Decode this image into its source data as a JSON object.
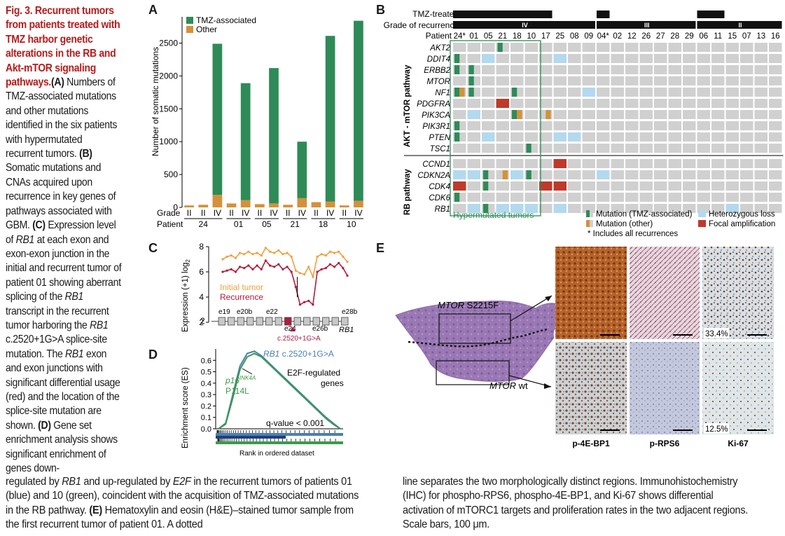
{
  "figure": {
    "legend_left": {
      "title": "Fig. 3. Recurrent tumors from patients treated with TMZ harbor genetic alterations in the RB and Akt-mTOR signaling pathways.",
      "a_label": "(A)",
      "a_text": " Numbers of TMZ-associated mutations and other mutations identified in the six patients with hypermutated recurrent tumors. ",
      "b_label": "(B)",
      "b_text": " Somatic mutations and CNAs acquired upon recurrence in key genes of pathways associated with GBM. ",
      "c_label": "(C)",
      "c_text_1": " Expression level of ",
      "c_gene_1": "RB1",
      "c_text_2": " at each exon and exon-exon junction in the initial and recurrent tumor of patient 01 showing aberrant splicing of the ",
      "c_gene_2": "RB1",
      "c_text_3": " transcript in the recurrent tumor harboring the ",
      "c_gene_3": "RB1",
      "c_text_4": " c.2520+1G>A splice-site mutation. The ",
      "c_gene_4": "RB1",
      "c_text_5": " exon and exon junctions with significant differential usage (red) and the location of the splice-site mutation are shown. ",
      "d_label": "(D)",
      "d_text": " Gene set enrichment analysis shows significant enrichment of genes down-"
    },
    "legend_bottom_left": {
      "t1": "regulated by ",
      "g1": "RB1",
      "t2": " and up-regulated by ",
      "g2": "E2F",
      "t3": " in the recurrent tumors of patients 01 (blue) and 10 (green), coincident with the acquisition of TMZ-associated mutations in the RB pathway. ",
      "e_label": "(E)",
      "t4": " Hematoxylin and eosin (H&E)–stained tumor sample from the first recurrent tumor of patient 01. A dotted"
    },
    "legend_bottom_right": {
      "text": "line separates the two morphologically distinct regions. Immunohistochemistry (IHC) for phospho-RPS6, phospho-4E-BP1, and Ki-67 shows differential activation of mTORC1 targets and proliferation rates in the two adjacent regions. Scale bars, 100 μm."
    }
  },
  "panels": {
    "A": "A",
    "B": "B",
    "C": "C",
    "D": "D",
    "E": "E"
  },
  "colors": {
    "tmz": "#2e8b57",
    "other": "#d4913a",
    "het_loss": "#b3d9ee",
    "focal_amp": "#c0392b",
    "grey_cell": "#d0d0d0",
    "initial": "#f0a040",
    "recurrence": "#b01c3c",
    "blue_line": "#4a7fb5",
    "green_line": "#3b9a4a",
    "legend_title": "#b71c1c"
  },
  "chart_a": {
    "legend": [
      "TMZ-associated",
      "Other"
    ],
    "ylabel": "Number of somatic mutations",
    "row_grade": "Grade",
    "row_patient": "Patient",
    "yticks": [
      0,
      500,
      1000,
      1500,
      2000,
      2500
    ],
    "ylim": [
      0,
      2900
    ]
  },
  "chart_data": [
    {
      "type": "bar",
      "panel": "A",
      "title": "",
      "ylabel": "Number of somatic mutations",
      "ylim": [
        0,
        2900
      ],
      "categories": [
        "24 II",
        "24 II",
        "24 IV",
        "01 II",
        "01 IV",
        "05 II",
        "05 IV",
        "21 II",
        "21 IV",
        "18 II",
        "18 IV",
        "10 II",
        "10 IV"
      ],
      "grades": [
        "II",
        "II",
        "IV",
        "II",
        "IV",
        "II",
        "IV",
        "II",
        "IV",
        "II",
        "IV",
        "II",
        "IV"
      ],
      "patients": [
        {
          "label": "24",
          "count": 3
        },
        {
          "label": "01",
          "count": 2
        },
        {
          "label": "05",
          "count": 2
        },
        {
          "label": "21",
          "count": 2
        },
        {
          "label": "18",
          "count": 2
        },
        {
          "label": "10",
          "count": 2
        }
      ],
      "series": [
        {
          "name": "TMZ-associated",
          "values": [
            0,
            0,
            2300,
            0,
            1780,
            0,
            2060,
            0,
            860,
            0,
            2520,
            0,
            2740
          ]
        },
        {
          "name": "Other",
          "values": [
            30,
            40,
            190,
            60,
            110,
            50,
            60,
            40,
            140,
            80,
            90,
            30,
            100
          ]
        }
      ]
    },
    {
      "type": "line",
      "panel": "C",
      "ylabel": "Expression (+1) log2",
      "ylim": [
        2,
        8
      ],
      "yticks": [
        2,
        4,
        6,
        8
      ],
      "x": [
        1,
        2,
        3,
        4,
        5,
        6,
        7,
        8,
        9,
        10,
        11,
        12,
        13,
        14,
        15,
        16,
        17,
        18,
        19,
        20,
        21,
        22,
        23,
        24,
        25,
        26,
        27,
        28,
        29,
        30
      ],
      "series": [
        {
          "name": "Initial tumor",
          "values": [
            7.0,
            7.2,
            7.3,
            7.1,
            7.5,
            7.4,
            7.6,
            7.4,
            7.5,
            7.3,
            7.9,
            7.6,
            7.5,
            7.7,
            7.4,
            7.5,
            7.2,
            6.1,
            5.9,
            5.8,
            6.4,
            5.6,
            7.2,
            7.4,
            7.3,
            7.6,
            7.5,
            7.6,
            7.2,
            6.8
          ]
        },
        {
          "name": "Recurrence",
          "values": [
            6.0,
            6.1,
            6.2,
            6.0,
            6.4,
            6.3,
            6.5,
            6.2,
            6.5,
            6.2,
            6.9,
            6.5,
            6.4,
            6.6,
            6.2,
            6.4,
            6.0,
            4.8,
            3.4,
            3.6,
            3.7,
            3.4,
            6.0,
            6.2,
            6.3,
            6.6,
            6.4,
            6.7,
            6.3,
            5.7
          ]
        }
      ],
      "exon_labels": [
        "e19",
        "e20b",
        "e22",
        "e24",
        "e26b",
        "e28b"
      ],
      "gene_label": "RB1",
      "mutation_label": "c.2520+1G>A"
    },
    {
      "type": "line",
      "panel": "D",
      "ylabel": "Enrichment score (ES)",
      "xlabel": "Rank in ordered dataset",
      "ylim": [
        0,
        0.7
      ],
      "yticks": [
        0.0,
        0.1,
        0.2,
        0.3,
        0.4,
        0.5,
        0.6
      ],
      "series": [
        {
          "name": "RB1 c.2520+1G>A",
          "values": [
            0,
            0.05,
            0.3,
            0.55,
            0.66,
            0.68,
            0.64,
            0.58,
            0.52,
            0.46,
            0.4,
            0.34,
            0.28,
            0.22,
            0.16,
            0.1,
            0.05,
            0
          ]
        },
        {
          "name": "p16INK4A P114L",
          "values": [
            0,
            0.04,
            0.27,
            0.52,
            0.63,
            0.66,
            0.63,
            0.57,
            0.51,
            0.45,
            0.39,
            0.33,
            0.27,
            0.21,
            0.15,
            0.09,
            0.04,
            0
          ]
        }
      ],
      "annotation": "q-value < 0.001",
      "set_label": "E2F-regulated genes"
    }
  ],
  "panel_b": {
    "row_tmz": "TMZ-treated",
    "row_grade": "Grade of recurrence",
    "row_patient": "Patient",
    "grades": [
      "IV",
      "III",
      "II"
    ],
    "patients": [
      "24*",
      "01",
      "05",
      "21",
      "18",
      "10",
      "17",
      "25",
      "08",
      "09",
      "04*",
      "02",
      "12",
      "26",
      "27",
      "28",
      "29",
      "06",
      "11",
      "15",
      "07",
      "13",
      "16"
    ],
    "akt_label": "AKT - mTOR pathway",
    "rb_label": "RB pathway",
    "akt_genes": [
      "AKT2",
      "DDIT4",
      "ERBB2",
      "MTOR",
      "NF1",
      "PDGFRA",
      "PIK3CA",
      "PIK3R1",
      "PTEN",
      "TSC1"
    ],
    "rb_genes": [
      "CCND1",
      "CDKN2A",
      "CDK4",
      "CDK6",
      "RB1"
    ],
    "hyper_label": "Hypermutated tumors",
    "legend": {
      "mut_tmz": "Mutation (TMZ-associated)",
      "mut_other": "Mutation (other)",
      "het_loss": "Heterozygous loss",
      "focal_amp": "Focal amplification",
      "note": "* Includes all recurrences"
    }
  },
  "panel_c": {
    "initial": "Initial tumor",
    "recurrence": "Recurrence",
    "ylabel": "Expression (+1) log",
    "ylabel_sub": "2"
  },
  "panel_d": {
    "rb1_gene": "RB1",
    "rb1_mut": " c.2520+1G>A",
    "p16_gene": "p16",
    "p16_sup": "INK4A",
    "p16_mut": "P114L",
    "set_label_1": "E2F-regulated",
    "set_label_2": "genes",
    "qvalue": "q-value < 0.001",
    "ylabel": "Enrichment score (ES)",
    "xlabel": "Rank in ordered dataset"
  },
  "panel_e": {
    "mtor_mut_gene": "MTOR",
    "mtor_mut": " S2215F",
    "mtor_wt_gene": "MTOR",
    "mtor_wt": " wt",
    "pct_top": "33.4%",
    "pct_bottom": "12.5%",
    "stain_1": "p-4E-BP1",
    "stain_2": "p-RPS6",
    "stain_3": "Ki-67"
  }
}
